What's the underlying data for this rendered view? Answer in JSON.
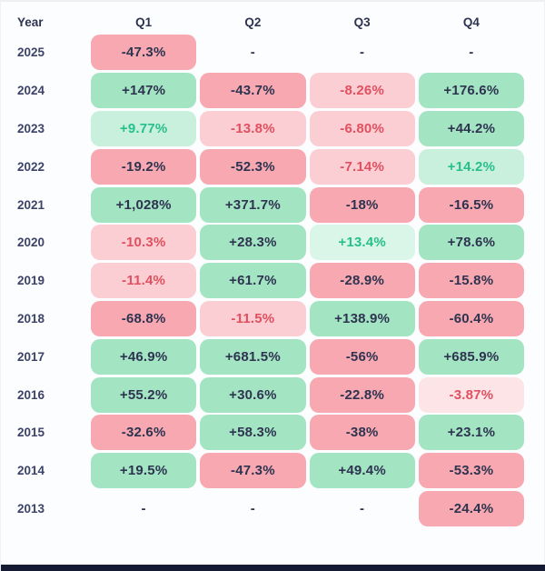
{
  "table": {
    "header": {
      "year": "Year",
      "quarters": [
        "Q1",
        "Q2",
        "Q3",
        "Q4"
      ]
    },
    "rows": [
      {
        "year": "2025",
        "cells": [
          {
            "text": "-47.3%",
            "tone": "red-strong"
          },
          {
            "text": "-",
            "tone": "none"
          },
          {
            "text": "-",
            "tone": "none"
          },
          {
            "text": "-",
            "tone": "none"
          }
        ]
      },
      {
        "year": "2024",
        "cells": [
          {
            "text": "+147%",
            "tone": "green-strong"
          },
          {
            "text": "-43.7%",
            "tone": "red-strong"
          },
          {
            "text": "-8.26%",
            "tone": "red-light"
          },
          {
            "text": "+176.6%",
            "tone": "green-strong"
          }
        ]
      },
      {
        "year": "2023",
        "cells": [
          {
            "text": "+9.77%",
            "tone": "green-light"
          },
          {
            "text": "-13.8%",
            "tone": "red-light"
          },
          {
            "text": "-6.80%",
            "tone": "red-light"
          },
          {
            "text": "+44.2%",
            "tone": "green-strong"
          }
        ]
      },
      {
        "year": "2022",
        "cells": [
          {
            "text": "-19.2%",
            "tone": "red-strong"
          },
          {
            "text": "-52.3%",
            "tone": "red-strong"
          },
          {
            "text": "-7.14%",
            "tone": "red-light"
          },
          {
            "text": "+14.2%",
            "tone": "green-light"
          }
        ]
      },
      {
        "year": "2021",
        "cells": [
          {
            "text": "+1,028%",
            "tone": "green-strong"
          },
          {
            "text": "+371.7%",
            "tone": "green-strong"
          },
          {
            "text": "-18%",
            "tone": "red-strong"
          },
          {
            "text": "-16.5%",
            "tone": "red-strong"
          }
        ]
      },
      {
        "year": "2020",
        "cells": [
          {
            "text": "-10.3%",
            "tone": "red-light"
          },
          {
            "text": "+28.3%",
            "tone": "green-strong"
          },
          {
            "text": "+13.4%",
            "tone": "green-pale"
          },
          {
            "text": "+78.6%",
            "tone": "green-strong"
          }
        ]
      },
      {
        "year": "2019",
        "cells": [
          {
            "text": "-11.4%",
            "tone": "red-light"
          },
          {
            "text": "+61.7%",
            "tone": "green-strong"
          },
          {
            "text": "-28.9%",
            "tone": "red-strong"
          },
          {
            "text": "-15.8%",
            "tone": "red-strong"
          }
        ]
      },
      {
        "year": "2018",
        "cells": [
          {
            "text": "-68.8%",
            "tone": "red-strong"
          },
          {
            "text": "-11.5%",
            "tone": "red-light"
          },
          {
            "text": "+138.9%",
            "tone": "green-strong"
          },
          {
            "text": "-60.4%",
            "tone": "red-strong"
          }
        ]
      },
      {
        "year": "2017",
        "cells": [
          {
            "text": "+46.9%",
            "tone": "green-strong"
          },
          {
            "text": "+681.5%",
            "tone": "green-strong"
          },
          {
            "text": "-56%",
            "tone": "red-strong"
          },
          {
            "text": "+685.9%",
            "tone": "green-strong"
          }
        ]
      },
      {
        "year": "2016",
        "cells": [
          {
            "text": "+55.2%",
            "tone": "green-strong"
          },
          {
            "text": "+30.6%",
            "tone": "green-strong"
          },
          {
            "text": "-22.8%",
            "tone": "red-strong"
          },
          {
            "text": "-3.87%",
            "tone": "red-pale"
          }
        ]
      },
      {
        "year": "2015",
        "cells": [
          {
            "text": "-32.6%",
            "tone": "red-strong"
          },
          {
            "text": "+58.3%",
            "tone": "green-strong"
          },
          {
            "text": "-38%",
            "tone": "red-strong"
          },
          {
            "text": "+23.1%",
            "tone": "green-strong"
          }
        ]
      },
      {
        "year": "2014",
        "cells": [
          {
            "text": "+19.5%",
            "tone": "green-strong"
          },
          {
            "text": "-47.3%",
            "tone": "red-strong"
          },
          {
            "text": "+49.4%",
            "tone": "green-strong"
          },
          {
            "text": "-53.3%",
            "tone": "red-strong"
          }
        ]
      },
      {
        "year": "2013",
        "cells": [
          {
            "text": "-",
            "tone": "none"
          },
          {
            "text": "-",
            "tone": "none"
          },
          {
            "text": "-",
            "tone": "none"
          },
          {
            "text": "-24.4%",
            "tone": "red-strong"
          }
        ]
      }
    ]
  },
  "chart_data": {
    "type": "heatmap",
    "title": "",
    "categories": [
      "Q1",
      "Q2",
      "Q3",
      "Q4"
    ],
    "rows": [
      "2025",
      "2024",
      "2023",
      "2022",
      "2021",
      "2020",
      "2019",
      "2018",
      "2017",
      "2016",
      "2015",
      "2014",
      "2013"
    ],
    "values": [
      [
        -47.3,
        null,
        null,
        null
      ],
      [
        147,
        -43.7,
        -8.26,
        176.6
      ],
      [
        9.77,
        -13.8,
        -6.8,
        44.2
      ],
      [
        -19.2,
        -52.3,
        -7.14,
        14.2
      ],
      [
        1028,
        371.7,
        -18,
        -16.5
      ],
      [
        -10.3,
        28.3,
        13.4,
        78.6
      ],
      [
        -11.4,
        61.7,
        -28.9,
        -15.8
      ],
      [
        -68.8,
        -11.5,
        138.9,
        -60.4
      ],
      [
        46.9,
        681.5,
        -56,
        685.9
      ],
      [
        55.2,
        30.6,
        -22.8,
        -3.87
      ],
      [
        -32.6,
        58.3,
        -38,
        23.1
      ],
      [
        19.5,
        -47.3,
        49.4,
        -53.3
      ],
      [
        null,
        null,
        null,
        -24.4
      ]
    ],
    "unit": "%",
    "legend_position": "none",
    "grid": false
  },
  "colors": {
    "page_bg": "#fcfdfe",
    "text_dark": "#2e3450",
    "year_text": "#3c4368",
    "green_strong_bg": "#a3e4c3",
    "green_light_bg": "#c8f0dc",
    "green_pale_bg": "#d9f6e8",
    "green_text": "#27bf8c",
    "red_strong_bg": "#f7a8b1",
    "red_light_bg": "#fbced4",
    "red_pale_bg": "#fce4e7",
    "red_text": "#e0505f",
    "bottom_bar": "#141b33"
  }
}
